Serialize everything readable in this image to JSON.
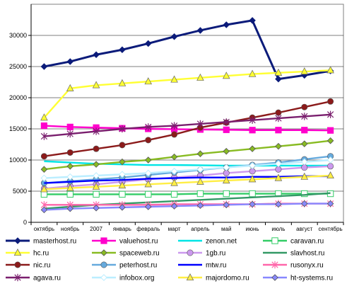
{
  "chart_data": {
    "type": "line",
    "title": "",
    "xlabel": "",
    "ylabel": "",
    "ylim": [
      0,
      35000
    ],
    "yticks": [
      0,
      5000,
      10000,
      15000,
      20000,
      25000,
      30000
    ],
    "grid": "horizontal",
    "legend_position": "bottom",
    "categories": [
      "октябрь",
      "ноябрь",
      "2007",
      "январь",
      "февраль",
      "март",
      "апрель",
      "май",
      "июнь",
      "июль",
      "август",
      "сентябрь"
    ],
    "series": [
      {
        "name": "masterhost.ru",
        "color": "#0b1b7a",
        "marker": "diamond",
        "values": [
          25000,
          25800,
          26900,
          27700,
          28700,
          29800,
          30800,
          31700,
          32400,
          23000,
          23600,
          24300
        ]
      },
      {
        "name": "valuehost.ru",
        "color": "#ff00cc",
        "marker": "square",
        "values": [
          15500,
          15300,
          15200,
          15100,
          15000,
          14950,
          14900,
          14850,
          14800,
          14800,
          14800,
          14750
        ]
      },
      {
        "name": "zenon.net",
        "color": "#00e5e5",
        "marker": "none",
        "values": [
          9800,
          9600,
          9400,
          9300,
          9200,
          9200,
          9150,
          9100,
          9100,
          9100,
          9100,
          9100
        ]
      },
      {
        "name": "caravan.ru",
        "color": "#33cc66",
        "marker": "hollow-square",
        "values": [
          4500,
          4500,
          4500,
          4500,
          4500,
          4500,
          4600,
          4600,
          4600,
          4600,
          4600,
          4600
        ]
      },
      {
        "name": "hc.ru",
        "color": "#ffff33",
        "marker": "triangle",
        "values": [
          16800,
          21500,
          22000,
          22300,
          22600,
          22900,
          23200,
          23500,
          23800,
          24000,
          24200,
          24400
        ]
      },
      {
        "name": "spaceweb.ru",
        "color": "#88bb22",
        "marker": "diamond",
        "values": [
          8500,
          9000,
          9300,
          9700,
          10000,
          10500,
          11000,
          11400,
          11800,
          12200,
          12600,
          13100
        ]
      },
      {
        "name": "1gb.ru",
        "color": "#cc99ee",
        "marker": "circle",
        "values": [
          5400,
          5800,
          6100,
          6500,
          6900,
          7200,
          7500,
          7900,
          8200,
          8500,
          8800,
          9000
        ]
      },
      {
        "name": "slavhost.ru",
        "color": "#339966",
        "marker": "none",
        "values": [
          2200,
          2500,
          2800,
          3000,
          3200,
          3400,
          3600,
          3800,
          4000,
          4200,
          4400,
          4700
        ]
      },
      {
        "name": "nic.ru",
        "color": "#8b1a1a",
        "marker": "circle",
        "values": [
          10600,
          11200,
          11800,
          12400,
          13200,
          14100,
          15200,
          16000,
          16800,
          17600,
          18500,
          19400
        ]
      },
      {
        "name": "peterhost.ru",
        "color": "#66aadd",
        "marker": "circle",
        "values": [
          6300,
          6600,
          6900,
          7200,
          7600,
          8000,
          8400,
          8800,
          9200,
          9600,
          10100,
          10600
        ]
      },
      {
        "name": "mtw.ru",
        "color": "#0000ff",
        "marker": "none",
        "values": [
          6300,
          6500,
          6700,
          6800,
          7000,
          7100,
          7200,
          7200,
          7300,
          7300,
          7400,
          7400
        ]
      },
      {
        "name": "rusonyx.ru",
        "color": "#ff66aa",
        "marker": "asterisk",
        "values": [
          2800,
          2800,
          2800,
          2800,
          2800,
          2900,
          2900,
          2900,
          2900,
          3000,
          3000,
          3000
        ]
      },
      {
        "name": "agava.ru",
        "color": "#7a1f6e",
        "marker": "asterisk",
        "values": [
          13800,
          14200,
          14600,
          15000,
          15300,
          15500,
          15800,
          16100,
          16400,
          16700,
          17000,
          17300
        ]
      },
      {
        "name": "infobox.org",
        "color": "#bbeeff",
        "marker": "hollow-diamond",
        "values": [
          7100,
          7300,
          7500,
          7700,
          7900,
          8200,
          8500,
          8800,
          9100,
          9400,
          9700,
          10000
        ]
      },
      {
        "name": "majordomo.ru",
        "color": "#ffee44",
        "marker": "triangle",
        "values": [
          5300,
          5500,
          5700,
          5900,
          6100,
          6300,
          6500,
          6700,
          6900,
          7100,
          7300,
          7500
        ]
      },
      {
        "name": "ht-systems.ru",
        "color": "#8888ff",
        "marker": "diamond",
        "values": [
          2000,
          2200,
          2300,
          2400,
          2500,
          2600,
          2700,
          2800,
          2900,
          2900,
          3000,
          3000
        ]
      }
    ]
  }
}
